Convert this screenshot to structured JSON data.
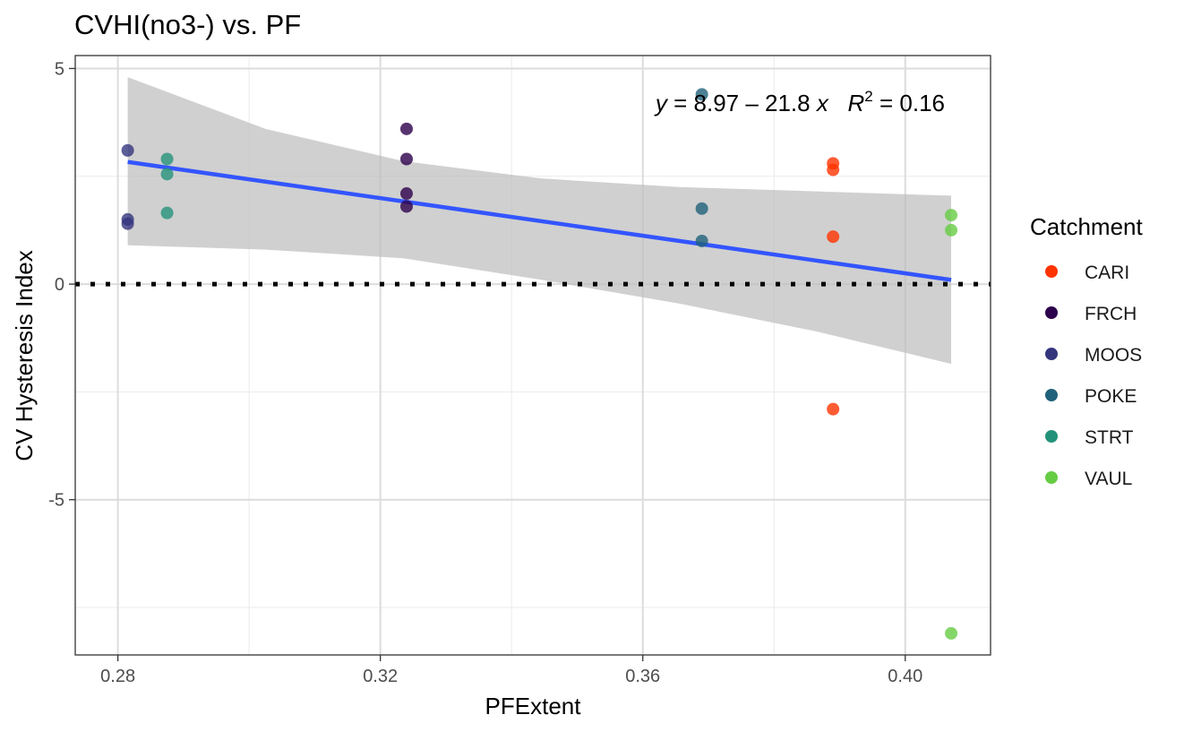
{
  "chart_data": {
    "type": "scatter",
    "title": "CVHI(no3-) vs. PF",
    "xlabel": "PFExtent",
    "ylabel": "CV Hysteresis Index",
    "xlim": [
      0.2735,
      0.413
    ],
    "ylim": [
      -8.6,
      5.3
    ],
    "x_ticks": [
      0.28,
      0.32,
      0.36,
      0.4
    ],
    "x_tick_labels": [
      "0.28",
      "0.32",
      "0.36",
      "0.40"
    ],
    "x_minor_ticks": [
      0.3,
      0.34,
      0.38
    ],
    "y_ticks": [
      5,
      0,
      -5
    ],
    "y_tick_labels": [
      "5",
      "0",
      "-5"
    ],
    "y_minor_ticks": [
      2.5,
      -2.5,
      -7.5
    ],
    "grid": true,
    "legend_title": "Catchment",
    "legend_position": "right",
    "series": [
      {
        "name": "CARI",
        "color": "#FF3300",
        "points": [
          [
            0.389,
            2.8
          ],
          [
            0.389,
            2.65
          ],
          [
            0.389,
            1.1
          ],
          [
            0.389,
            -2.9
          ]
        ]
      },
      {
        "name": "FRCH",
        "color": "#2D004B",
        "points": [
          [
            0.324,
            3.6
          ],
          [
            0.324,
            2.9
          ],
          [
            0.324,
            2.1
          ],
          [
            0.324,
            1.8
          ]
        ]
      },
      {
        "name": "MOOS",
        "color": "#35357E",
        "points": [
          [
            0.2815,
            3.1
          ],
          [
            0.2815,
            1.5
          ],
          [
            0.2815,
            1.4
          ]
        ]
      },
      {
        "name": "POKE",
        "color": "#1F607A",
        "points": [
          [
            0.369,
            4.4
          ],
          [
            0.369,
            1.75
          ],
          [
            0.369,
            1.0
          ]
        ]
      },
      {
        "name": "STRT",
        "color": "#24927A",
        "points": [
          [
            0.2875,
            2.9
          ],
          [
            0.2875,
            2.55
          ],
          [
            0.2875,
            1.65
          ]
        ]
      },
      {
        "name": "VAUL",
        "color": "#66CC44",
        "points": [
          [
            0.407,
            1.6
          ],
          [
            0.407,
            1.25
          ],
          [
            0.407,
            -8.1
          ]
        ]
      }
    ],
    "fit": {
      "intercept": 8.97,
      "slope": -21.8,
      "x_range": [
        0.2815,
        0.407
      ],
      "line_color": "#3355FF",
      "ci_color": "#BEBEBE",
      "ci_band": [
        {
          "x": 0.2815,
          "lo": 0.9,
          "hi": 4.8
        },
        {
          "x": 0.3025,
          "lo": 0.8,
          "hi": 3.6
        },
        {
          "x": 0.3235,
          "lo": 0.6,
          "hi": 2.85
        },
        {
          "x": 0.3445,
          "lo": 0.1,
          "hi": 2.45
        },
        {
          "x": 0.3655,
          "lo": -0.45,
          "hi": 2.25
        },
        {
          "x": 0.3865,
          "lo": -1.1,
          "hi": 2.15
        },
        {
          "x": 0.407,
          "lo": -1.85,
          "hi": 2.05
        }
      ]
    },
    "reference_line": {
      "y": 0,
      "style": "dotted",
      "color": "#000000"
    },
    "annotation": {
      "y_var": "y",
      "eq_body": " = 8.97 – 21.8 ",
      "x_var": "x",
      "r_var": "R",
      "r_exp": "2",
      "r_value": " = 0.16"
    }
  }
}
